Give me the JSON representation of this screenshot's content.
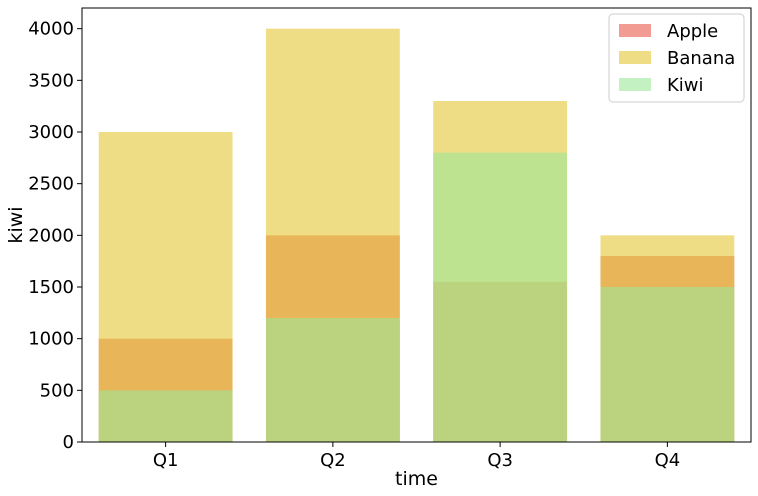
{
  "chart_data": {
    "type": "bar",
    "categories": [
      "Q1",
      "Q2",
      "Q3",
      "Q4"
    ],
    "series": [
      {
        "name": "Apple",
        "values": [
          1000,
          2000,
          1550,
          1800
        ],
        "color": "#e8594a"
      },
      {
        "name": "Banana",
        "values": [
          3000,
          4000,
          3300,
          2000
        ],
        "color": "#e3c734"
      },
      {
        "name": "Kiwi",
        "values": [
          500,
          1200,
          2800,
          1500
        ],
        "color": "#9de89a"
      }
    ],
    "opacity": 0.6,
    "overlay": true,
    "xlabel": "time",
    "ylabel": "kiwi",
    "ylim": [
      0,
      4200
    ],
    "yticks": [
      0,
      500,
      1000,
      1500,
      2000,
      2500,
      3000,
      3500,
      4000
    ],
    "ytick_labels": [
      "0",
      "500",
      "1000",
      "1500",
      "2000",
      "2500",
      "3000",
      "3500",
      "4000"
    ],
    "grid": false,
    "legend_position": "top-right"
  }
}
